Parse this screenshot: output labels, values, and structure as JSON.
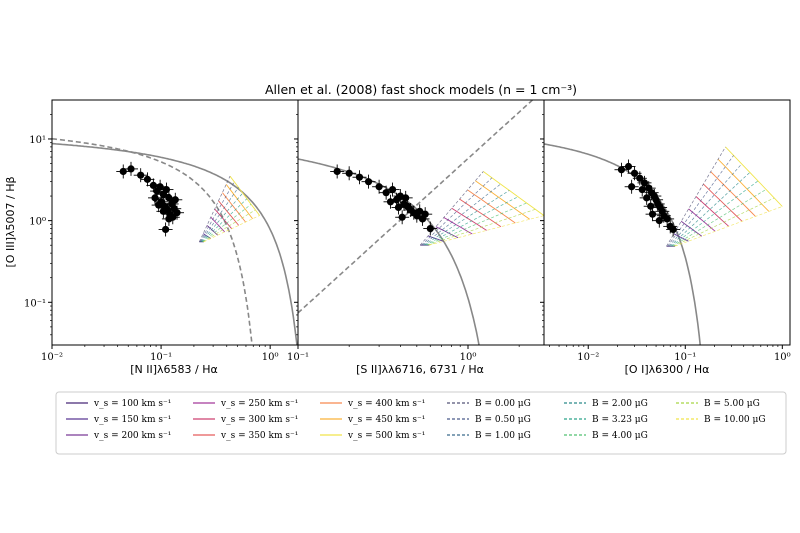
{
  "chart_data": {
    "type": "scatter",
    "title": "Allen et al. (2008) fast shock models (n = 1 cm⁻³)",
    "ylabel": "[O III]λ5007 / Hβ",
    "ylim": [
      0.03,
      30
    ],
    "yscale": "log",
    "y_ticks": [
      {
        "value": 10,
        "label": "10¹"
      },
      {
        "value": 1,
        "label": "10⁰"
      },
      {
        "value": 0.1,
        "label": "10⁻¹"
      }
    ],
    "panels": [
      {
        "xlabel": "[N II]λ6583 / Hα",
        "xlim": [
          0.01,
          1.8
        ],
        "xscale": "log",
        "x_ticks": [
          {
            "value": 0.01,
            "label": "10⁻²"
          },
          {
            "value": 0.1,
            "label": "10⁻¹"
          },
          {
            "value": 1,
            "label": "10⁰"
          }
        ],
        "demarcations": [
          {
            "style": "solid",
            "form": "0.61/(log x - 0.47) + 1.19"
          },
          {
            "style": "dashed",
            "form": "0.61/(log x - 0.05) + 1.3"
          }
        ],
        "points": [
          [
            0.045,
            4.0
          ],
          [
            0.053,
            4.3
          ],
          [
            0.065,
            3.6
          ],
          [
            0.075,
            3.2
          ],
          [
            0.085,
            2.7
          ],
          [
            0.092,
            2.3
          ],
          [
            0.098,
            2.6
          ],
          [
            0.105,
            2.1
          ],
          [
            0.112,
            2.4
          ],
          [
            0.118,
            1.9
          ],
          [
            0.1,
            1.7
          ],
          [
            0.108,
            1.5
          ],
          [
            0.115,
            1.35
          ],
          [
            0.125,
            1.6
          ],
          [
            0.132,
            1.4
          ],
          [
            0.12,
            1.2
          ],
          [
            0.128,
            1.1
          ],
          [
            0.14,
            1.25
          ],
          [
            0.105,
            1.3
          ],
          [
            0.11,
            0.78
          ],
          [
            0.095,
            1.55
          ],
          [
            0.135,
            1.8
          ],
          [
            0.088,
            1.9
          ],
          [
            0.118,
            1.05
          ]
        ],
        "grid_box": {
          "x": [
            0.2,
            0.8
          ],
          "y": [
            0.5,
            3.5
          ]
        }
      },
      {
        "xlabel": "[S II]λλ6716, 6731 / Hα",
        "xlim": [
          0.1,
          2.8
        ],
        "xscale": "log",
        "x_ticks": [
          {
            "value": 0.1,
            "label": "10⁻¹"
          },
          {
            "value": 1,
            "label": "10⁰"
          }
        ],
        "demarcations": [
          {
            "style": "solid",
            "form": "0.72/(log x - 0.32) + 1.30"
          },
          {
            "style": "dashed",
            "form": "1.89 log x + 0.76"
          }
        ],
        "points": [
          [
            0.17,
            4.0
          ],
          [
            0.2,
            3.8
          ],
          [
            0.23,
            3.4
          ],
          [
            0.26,
            3.0
          ],
          [
            0.3,
            2.6
          ],
          [
            0.33,
            2.2
          ],
          [
            0.36,
            2.4
          ],
          [
            0.38,
            1.8
          ],
          [
            0.4,
            2.0
          ],
          [
            0.42,
            1.6
          ],
          [
            0.44,
            1.5
          ],
          [
            0.46,
            1.35
          ],
          [
            0.48,
            1.25
          ],
          [
            0.5,
            1.15
          ],
          [
            0.35,
            1.7
          ],
          [
            0.39,
            1.45
          ],
          [
            0.52,
            1.3
          ],
          [
            0.56,
            1.2
          ],
          [
            0.6,
            0.8
          ],
          [
            0.43,
            1.9
          ],
          [
            0.41,
            1.1
          ],
          [
            0.54,
            1.05
          ]
        ],
        "grid_box": {
          "x": [
            0.45,
            2.8
          ],
          "y": [
            0.45,
            4.0
          ]
        }
      },
      {
        "xlabel": "[O I]λ6300 / Hα",
        "xlim": [
          0.0035,
          1.2
        ],
        "xscale": "log",
        "x_ticks": [
          {
            "value": 0.01,
            "label": "10⁻²"
          },
          {
            "value": 0.1,
            "label": "10⁻¹"
          },
          {
            "value": 1,
            "label": "10⁰"
          }
        ],
        "demarcations": [
          {
            "style": "solid",
            "form": "0.73/(log x + 0.59) + 1.33"
          }
        ],
        "points": [
          [
            0.022,
            4.2
          ],
          [
            0.026,
            4.6
          ],
          [
            0.03,
            3.8
          ],
          [
            0.034,
            3.3
          ],
          [
            0.038,
            2.9
          ],
          [
            0.042,
            2.5
          ],
          [
            0.045,
            2.2
          ],
          [
            0.048,
            2.0
          ],
          [
            0.05,
            1.8
          ],
          [
            0.052,
            1.6
          ],
          [
            0.055,
            1.45
          ],
          [
            0.058,
            1.3
          ],
          [
            0.04,
            1.9
          ],
          [
            0.044,
            1.5
          ],
          [
            0.06,
            1.15
          ],
          [
            0.065,
            1.05
          ],
          [
            0.07,
            0.85
          ],
          [
            0.036,
            2.4
          ],
          [
            0.046,
            1.2
          ],
          [
            0.054,
            1.0
          ],
          [
            0.075,
            0.78
          ],
          [
            0.028,
            2.6
          ]
        ],
        "grid_box": {
          "x": [
            0.05,
            1.0
          ],
          "y": [
            0.42,
            8.0
          ]
        }
      }
    ],
    "legend": {
      "placement": "bottom",
      "velocity_series": [
        {
          "name": "v_s = 100 km s⁻¹",
          "color": "#482878"
        },
        {
          "name": "v_s = 150 km s⁻¹",
          "color": "#5b3794"
        },
        {
          "name": "v_s = 200 km s⁻¹",
          "color": "#7b3a96"
        },
        {
          "name": "v_s = 250 km s⁻¹",
          "color": "#a4399b"
        },
        {
          "name": "v_s = 300 km s⁻¹",
          "color": "#cd4071"
        },
        {
          "name": "v_s = 350 km s⁻¹",
          "color": "#e55c5c"
        },
        {
          "name": "v_s = 400 km s⁻¹",
          "color": "#f8894f"
        },
        {
          "name": "v_s = 450 km s⁻¹",
          "color": "#fbb239"
        },
        {
          "name": "v_s = 500 km s⁻¹",
          "color": "#f0e44b"
        }
      ],
      "field_series": [
        {
          "name": "B = 0.00 μG",
          "color": "#555577"
        },
        {
          "name": "B = 0.50 μG",
          "color": "#4a5a8a"
        },
        {
          "name": "B = 1.00 μG",
          "color": "#3b6a8c"
        },
        {
          "name": "B = 2.00 μG",
          "color": "#2a8a8a"
        },
        {
          "name": "B = 3.23 μG",
          "color": "#2ca58a"
        },
        {
          "name": "B = 4.00 μG",
          "color": "#52c070"
        },
        {
          "name": "B = 5.00 μG",
          "color": "#a8d545"
        },
        {
          "name": "B = 10.00 μG",
          "color": "#f0e44b"
        }
      ]
    }
  }
}
